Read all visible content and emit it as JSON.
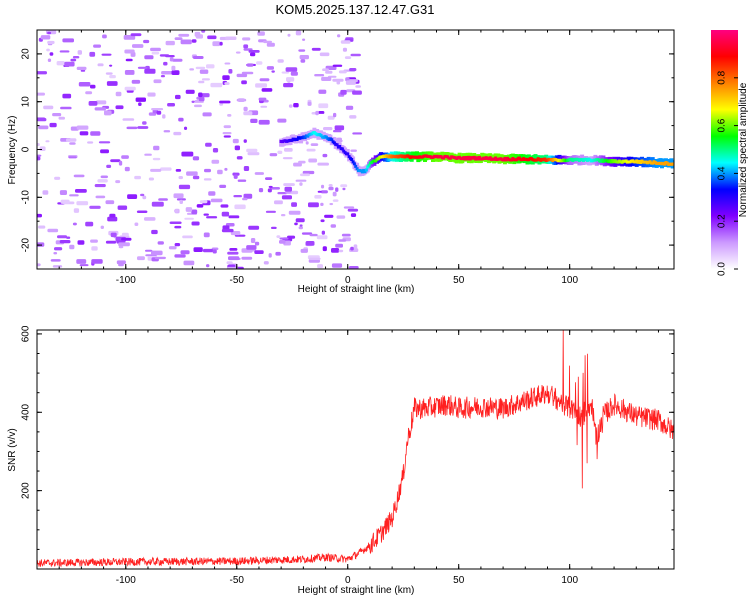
{
  "title": "KOM5.2025.137.12.47.G31",
  "chart_data": [
    {
      "type": "heatmap",
      "title": "KOM5.2025.137.12.47.G31",
      "xlabel": "Height of straight line (km)",
      "ylabel": "Frequency (Hz)",
      "xlim": [
        -140,
        147
      ],
      "ylim": [
        -25,
        25
      ],
      "xticks": [
        -100,
        -50,
        0,
        50,
        100
      ],
      "yticks": [
        -20,
        -10,
        0,
        10,
        20
      ],
      "colorbar": {
        "label": "Normalized spectral amplitude",
        "range": [
          0,
          1
        ],
        "ticks": [
          0.0,
          0.2,
          0.4,
          0.6,
          0.8
        ],
        "colors": [
          "#ffffff",
          "#cc99ff",
          "#8000ff",
          "#0000ff",
          "#00ffff",
          "#00ff00",
          "#ffff00",
          "#ff8000",
          "#ff0000",
          "#ff0080"
        ]
      },
      "trace": {
        "x": [
          -30,
          -20,
          -15,
          -10,
          -7,
          -5,
          0,
          3,
          5,
          8,
          10,
          15,
          20,
          30,
          40,
          50,
          60,
          70,
          80,
          90,
          100,
          110,
          120,
          130,
          140,
          147
        ],
        "y": [
          1.5,
          2.5,
          3.5,
          2.5,
          2.0,
          1.0,
          -1.0,
          -3.0,
          -4.5,
          -4.5,
          -3.0,
          -1.5,
          -1.5,
          -1.5,
          -1.5,
          -1.8,
          -1.8,
          -2.0,
          -2.0,
          -2.2,
          -2.2,
          -2.2,
          -2.5,
          -2.5,
          -2.8,
          -3.0
        ],
        "amplitude": [
          0.25,
          0.35,
          0.45,
          0.4,
          0.35,
          0.3,
          0.3,
          0.35,
          0.4,
          0.4,
          0.5,
          0.65,
          0.8,
          0.9,
          0.95,
          0.95,
          0.95,
          0.95,
          0.9,
          0.85,
          0.5,
          0.45,
          0.6,
          0.7,
          0.75,
          0.75
        ]
      }
    },
    {
      "type": "line",
      "xlabel": "Height of straight line (km)",
      "ylabel": "SNR (v/v)",
      "xlim": [
        -140,
        147
      ],
      "ylim": [
        0,
        610
      ],
      "xticks": [
        -100,
        -50,
        0,
        50,
        100
      ],
      "yticks": [
        200,
        400,
        600
      ],
      "color": "#ff2020",
      "series": [
        {
          "x": [
            -140,
            -100,
            -50,
            -20,
            -10,
            0,
            5,
            10,
            15,
            20,
            22,
            25,
            27,
            29,
            30,
            35,
            40,
            45,
            50,
            60,
            70,
            80,
            85,
            90,
            95,
            100,
            105,
            108,
            110,
            112,
            115,
            120,
            130,
            140,
            147
          ],
          "y": [
            15,
            18,
            20,
            25,
            30,
            25,
            40,
            60,
            90,
            130,
            170,
            240,
            330,
            380,
            410,
            410,
            415,
            420,
            410,
            415,
            410,
            430,
            440,
            450,
            430,
            410,
            390,
            410,
            420,
            330,
            390,
            420,
            390,
            380,
            350
          ]
        }
      ]
    }
  ]
}
